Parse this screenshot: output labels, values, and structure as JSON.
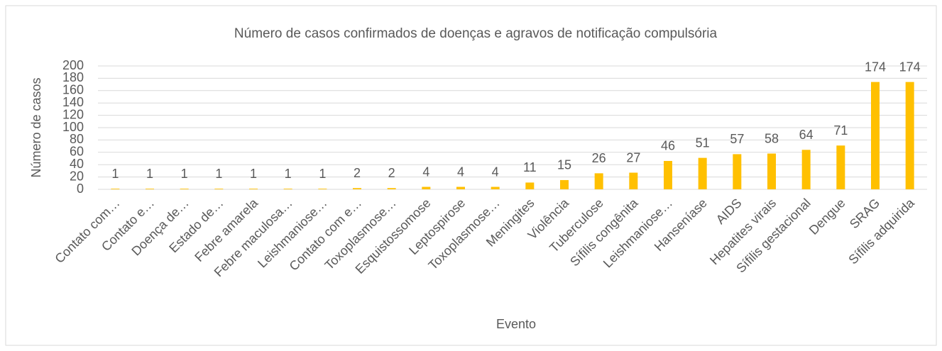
{
  "chart_data": {
    "type": "bar",
    "title": "Número de casos confirmados de doenças e agravos de notificação compulsória",
    "x_label": "Evento",
    "y_label": "Número de casos",
    "categories": [
      "Contato com…",
      "Contato e…",
      "Doença de…",
      "Estado de…",
      "Febre amarela",
      "Febre maculosa…",
      "Leishmaniose…",
      "Contato com e…",
      "Toxoplasmose…",
      "Esquistossomose",
      "Leptospirose",
      "Toxoplasmose…",
      "Meningites",
      "Violência",
      "Tuberculose",
      "Sífilis congênita",
      "Leishmaniose…",
      "Hanseníase",
      "AIDS",
      "Hepatites virais",
      "Sífilis gestacional",
      "Dengue",
      "SRAG",
      "Sífilis adquirida"
    ],
    "values": [
      1,
      1,
      1,
      1,
      1,
      1,
      1,
      2,
      2,
      4,
      4,
      4,
      11,
      15,
      26,
      27,
      46,
      51,
      57,
      58,
      64,
      71,
      174,
      174
    ],
    "color": "#ffc000",
    "ylim": [
      0,
      200
    ],
    "yticks": [
      0,
      20,
      40,
      60,
      80,
      100,
      120,
      140,
      160,
      180,
      200
    ],
    "grid": true
  }
}
